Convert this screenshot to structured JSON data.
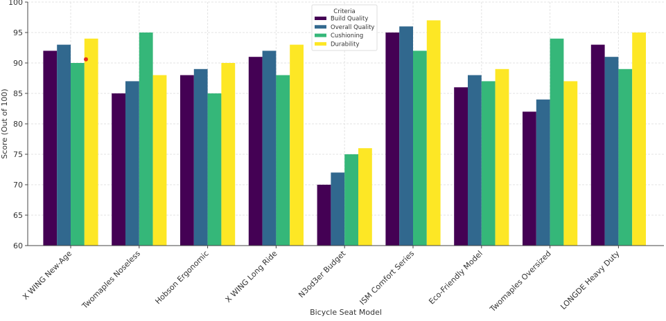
{
  "chart_data": {
    "type": "bar",
    "xlabel": "Bicycle Seat Model",
    "ylabel": "Score (Out of 100)",
    "ylim": [
      60,
      100
    ],
    "yticks": [
      60,
      65,
      70,
      75,
      80,
      85,
      90,
      95,
      100
    ],
    "grid": true,
    "legend": {
      "title": "Criteria",
      "placement": "top-center"
    },
    "categories": [
      "X WING New-Age",
      "Twomaples Noseless",
      "Hobson Ergonomic",
      "X WING Long Ride",
      "N3od3er Budget",
      "ISM Comfort Series",
      "Eco-Friendly Model",
      "Twomaples Oversized",
      "LONGDE Heavy Duty"
    ],
    "series": [
      {
        "name": "Build Quality",
        "color": "#440154",
        "values": [
          92,
          85,
          88,
          91,
          70,
          95,
          86,
          82,
          93
        ]
      },
      {
        "name": "Overall Quality",
        "color": "#31688e",
        "values": [
          93,
          87,
          89,
          92,
          72,
          96,
          88,
          84,
          91
        ]
      },
      {
        "name": "Cushioning",
        "color": "#35b779",
        "values": [
          90,
          95,
          85,
          88,
          75,
          92,
          87,
          94,
          89
        ]
      },
      {
        "name": "Durability",
        "color": "#fde725",
        "values": [
          94,
          88,
          90,
          93,
          76,
          97,
          89,
          87,
          95
        ]
      }
    ],
    "annotations": [
      {
        "type": "marker",
        "color": "#e0301e",
        "category": "X WING New-Age",
        "y": 90.6
      }
    ]
  }
}
